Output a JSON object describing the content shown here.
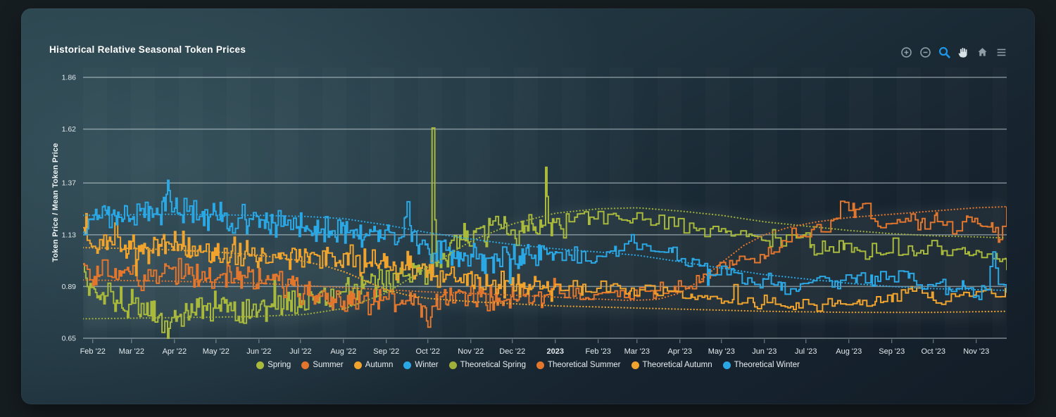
{
  "toolbar": {
    "buttons": [
      {
        "name": "zoom-in"
      },
      {
        "name": "zoom-out"
      },
      {
        "name": "selection-zoom",
        "active": true
      },
      {
        "name": "pan"
      },
      {
        "name": "reset-zoom"
      },
      {
        "name": "menu"
      }
    ],
    "icon_color": "#8f9ea6",
    "active_color": "#1d96e8",
    "pan_color": "#d9e2e7"
  },
  "chart_data": {
    "type": "line",
    "title": "Historical Relative Seasonal Token Prices",
    "xlabel": "",
    "ylabel": "Token Price / Mean Token Price",
    "grid": true,
    "legend_position": "bottom",
    "ylim": [
      0.648,
      1.906
    ],
    "yticks": [
      0.65,
      0.89,
      1.13,
      1.37,
      1.62,
      1.86
    ],
    "domain_days": 667,
    "xticks": [
      {
        "label": "Feb '22",
        "day": 7
      },
      {
        "label": "Mar '22",
        "day": 35
      },
      {
        "label": "Apr '22",
        "day": 66
      },
      {
        "label": "May '22",
        "day": 96
      },
      {
        "label": "Jun '22",
        "day": 127
      },
      {
        "label": "Jul '22",
        "day": 157
      },
      {
        "label": "Aug '22",
        "day": 188
      },
      {
        "label": "Sep '22",
        "day": 219
      },
      {
        "label": "Oct '22",
        "day": 249
      },
      {
        "label": "Nov '22",
        "day": 280
      },
      {
        "label": "Dec '22",
        "day": 310
      },
      {
        "label": "2023",
        "day": 341,
        "bold": true
      },
      {
        "label": "Feb '23",
        "day": 372
      },
      {
        "label": "Mar '23",
        "day": 400
      },
      {
        "label": "Apr '23",
        "day": 431
      },
      {
        "label": "May '23",
        "day": 461
      },
      {
        "label": "Jun '23",
        "day": 492
      },
      {
        "label": "Jul '23",
        "day": 522
      },
      {
        "label": "Aug '23",
        "day": 553
      },
      {
        "label": "Sep '23",
        "day": 584
      },
      {
        "label": "Oct '23",
        "day": 614
      },
      {
        "label": "Nov '23",
        "day": 645
      }
    ],
    "series": [
      {
        "name": "Spring",
        "color": "#a8b93c",
        "style": "solid",
        "points": [
          [
            0,
            1.0
          ],
          [
            4,
            0.86
          ],
          [
            20,
            0.84
          ],
          [
            40,
            0.81
          ],
          [
            59,
            0.72
          ],
          [
            61,
            0.66
          ],
          [
            64,
            0.76
          ],
          [
            78,
            0.78
          ],
          [
            96,
            0.81
          ],
          [
            115,
            0.78
          ],
          [
            135,
            0.8
          ],
          [
            157,
            0.82
          ],
          [
            175,
            0.84
          ],
          [
            195,
            0.87
          ],
          [
            219,
            0.91
          ],
          [
            240,
            0.95
          ],
          [
            250,
            0.96
          ],
          [
            252,
            1.62
          ],
          [
            255,
            0.99
          ],
          [
            268,
            1.09
          ],
          [
            280,
            1.14
          ],
          [
            298,
            1.17
          ],
          [
            310,
            1.16
          ],
          [
            332,
            1.17
          ],
          [
            334,
            1.44
          ],
          [
            336,
            1.18
          ],
          [
            345,
            1.19
          ],
          [
            365,
            1.21
          ],
          [
            385,
            1.22
          ],
          [
            400,
            1.2
          ],
          [
            420,
            1.18
          ],
          [
            445,
            1.16
          ],
          [
            465,
            1.14
          ],
          [
            490,
            1.12
          ],
          [
            520,
            1.12
          ],
          [
            526,
            1.07
          ],
          [
            550,
            1.07
          ],
          [
            580,
            1.04
          ],
          [
            600,
            1.05
          ],
          [
            620,
            1.07
          ],
          [
            640,
            1.05
          ],
          [
            660,
            1.03
          ],
          [
            667,
            0.99
          ]
        ]
      },
      {
        "name": "Summer",
        "color": "#e3762d",
        "style": "solid",
        "points": [
          [
            0,
            0.98
          ],
          [
            8,
            0.93
          ],
          [
            25,
            0.97
          ],
          [
            45,
            0.93
          ],
          [
            65,
            0.96
          ],
          [
            85,
            0.92
          ],
          [
            105,
            0.94
          ],
          [
            127,
            0.92
          ],
          [
            145,
            0.91
          ],
          [
            160,
            0.89
          ],
          [
            180,
            0.82
          ],
          [
            200,
            0.8
          ],
          [
            219,
            0.82
          ],
          [
            240,
            0.83
          ],
          [
            247,
            0.8
          ],
          [
            249,
            0.655
          ],
          [
            252,
            0.8
          ],
          [
            265,
            0.83
          ],
          [
            280,
            0.86
          ],
          [
            298,
            0.84
          ],
          [
            310,
            0.86
          ],
          [
            325,
            0.85
          ],
          [
            341,
            0.87
          ],
          [
            358,
            0.85
          ],
          [
            375,
            0.84
          ],
          [
            395,
            0.85
          ],
          [
            412,
            0.86
          ],
          [
            428,
            0.89
          ],
          [
            445,
            0.93
          ],
          [
            458,
            0.97
          ],
          [
            470,
            1.0
          ],
          [
            482,
            1.03
          ],
          [
            492,
            1.04
          ],
          [
            505,
            1.09
          ],
          [
            515,
            1.13
          ],
          [
            528,
            1.14
          ],
          [
            542,
            1.2
          ],
          [
            550,
            1.29
          ],
          [
            557,
            1.24
          ],
          [
            563,
            1.29
          ],
          [
            572,
            1.19
          ],
          [
            584,
            1.17
          ],
          [
            596,
            1.2
          ],
          [
            606,
            1.17
          ],
          [
            616,
            1.21
          ],
          [
            628,
            1.17
          ],
          [
            638,
            1.2
          ],
          [
            648,
            1.18
          ],
          [
            656,
            1.16
          ],
          [
            662,
            1.12
          ],
          [
            667,
            1.25
          ]
        ]
      },
      {
        "name": "Autumn",
        "color": "#f0a42d",
        "style": "solid",
        "points": [
          [
            0,
            1.13
          ],
          [
            6,
            1.06
          ],
          [
            25,
            1.08
          ],
          [
            45,
            1.05
          ],
          [
            66,
            1.09
          ],
          [
            85,
            1.06
          ],
          [
            105,
            1.04
          ],
          [
            127,
            1.04
          ],
          [
            147,
            1.02
          ],
          [
            167,
            1.01
          ],
          [
            188,
            1.03
          ],
          [
            205,
            1.0
          ],
          [
            219,
            1.0
          ],
          [
            235,
            0.98
          ],
          [
            249,
            0.96
          ],
          [
            265,
            0.93
          ],
          [
            280,
            0.91
          ],
          [
            295,
            0.9
          ],
          [
            310,
            0.89
          ],
          [
            325,
            0.89
          ],
          [
            341,
            0.88
          ],
          [
            360,
            0.88
          ],
          [
            378,
            0.89
          ],
          [
            395,
            0.88
          ],
          [
            410,
            0.87
          ],
          [
            425,
            0.86
          ],
          [
            440,
            0.85
          ],
          [
            455,
            0.84
          ],
          [
            470,
            0.83
          ],
          [
            485,
            0.82
          ],
          [
            500,
            0.81
          ],
          [
            515,
            0.8
          ],
          [
            530,
            0.81
          ],
          [
            545,
            0.8
          ],
          [
            560,
            0.81
          ],
          [
            572,
            0.82
          ],
          [
            584,
            0.85
          ],
          [
            598,
            0.86
          ],
          [
            614,
            0.84
          ],
          [
            630,
            0.85
          ],
          [
            645,
            0.86
          ],
          [
            656,
            0.84
          ],
          [
            667,
            0.88
          ]
        ]
      },
      {
        "name": "Winter",
        "color": "#2aa8e6",
        "style": "solid",
        "points": [
          [
            0,
            1.13
          ],
          [
            4,
            1.2
          ],
          [
            15,
            1.24
          ],
          [
            30,
            1.21
          ],
          [
            45,
            1.24
          ],
          [
            59,
            1.25
          ],
          [
            61,
            1.38
          ],
          [
            64,
            1.24
          ],
          [
            90,
            1.22
          ],
          [
            105,
            1.21
          ],
          [
            120,
            1.19
          ],
          [
            135,
            1.19
          ],
          [
            150,
            1.17
          ],
          [
            165,
            1.17
          ],
          [
            180,
            1.15
          ],
          [
            195,
            1.14
          ],
          [
            210,
            1.13
          ],
          [
            222,
            1.12
          ],
          [
            230,
            1.12
          ],
          [
            234,
            1.29
          ],
          [
            237,
            1.1
          ],
          [
            242,
            1.09
          ],
          [
            249,
            1.06
          ],
          [
            262,
            1.04
          ],
          [
            275,
            1.02
          ],
          [
            290,
            1.01
          ],
          [
            305,
            1.04
          ],
          [
            320,
            1.02
          ],
          [
            341,
            1.05
          ],
          [
            355,
            1.03
          ],
          [
            370,
            1.02
          ],
          [
            385,
            1.07
          ],
          [
            398,
            1.1
          ],
          [
            410,
            1.06
          ],
          [
            425,
            1.04
          ],
          [
            440,
            1.0
          ],
          [
            452,
            0.97
          ],
          [
            465,
            0.95
          ],
          [
            478,
            0.93
          ],
          [
            492,
            0.91
          ],
          [
            505,
            0.89
          ],
          [
            518,
            0.9
          ],
          [
            532,
            0.92
          ],
          [
            545,
            0.91
          ],
          [
            558,
            0.93
          ],
          [
            570,
            0.92
          ],
          [
            584,
            0.95
          ],
          [
            596,
            0.92
          ],
          [
            606,
            0.89
          ],
          [
            616,
            0.9
          ],
          [
            626,
            0.87
          ],
          [
            636,
            0.9
          ],
          [
            645,
            0.86
          ],
          [
            652,
            0.88
          ],
          [
            657,
            1.05
          ],
          [
            661,
            0.9
          ],
          [
            667,
            0.87
          ]
        ]
      },
      {
        "name": "Theoretical Spring",
        "color": "#9fb03a",
        "style": "dotted",
        "points": [
          [
            0,
            0.74
          ],
          [
            60,
            0.745
          ],
          [
            120,
            0.75
          ],
          [
            160,
            0.76
          ],
          [
            190,
            0.79
          ],
          [
            219,
            0.86
          ],
          [
            249,
            0.98
          ],
          [
            280,
            1.1
          ],
          [
            310,
            1.18
          ],
          [
            341,
            1.23
          ],
          [
            372,
            1.25
          ],
          [
            400,
            1.255
          ],
          [
            431,
            1.24
          ],
          [
            461,
            1.22
          ],
          [
            492,
            1.19
          ],
          [
            522,
            1.17
          ],
          [
            553,
            1.15
          ],
          [
            584,
            1.135
          ],
          [
            614,
            1.125
          ],
          [
            645,
            1.12
          ],
          [
            667,
            1.115
          ]
        ]
      },
      {
        "name": "Theoretical Summer",
        "color": "#e3762d",
        "style": "dotted",
        "points": [
          [
            0,
            0.92
          ],
          [
            60,
            0.915
          ],
          [
            127,
            0.905
          ],
          [
            188,
            0.885
          ],
          [
            249,
            0.865
          ],
          [
            310,
            0.85
          ],
          [
            360,
            0.835
          ],
          [
            395,
            0.825
          ],
          [
            415,
            0.83
          ],
          [
            431,
            0.86
          ],
          [
            446,
            0.92
          ],
          [
            461,
            1.0
          ],
          [
            477,
            1.08
          ],
          [
            492,
            1.13
          ],
          [
            510,
            1.165
          ],
          [
            530,
            1.19
          ],
          [
            553,
            1.21
          ],
          [
            584,
            1.225
          ],
          [
            614,
            1.24
          ],
          [
            645,
            1.255
          ],
          [
            667,
            1.26
          ]
        ]
      },
      {
        "name": "Theoretical Autumn",
        "color": "#f0a42d",
        "style": "dotted",
        "points": [
          [
            0,
            1.07
          ],
          [
            45,
            1.065
          ],
          [
            96,
            1.05
          ],
          [
            127,
            1.035
          ],
          [
            157,
            1.01
          ],
          [
            175,
            0.985
          ],
          [
            190,
            0.955
          ],
          [
            204,
            0.915
          ],
          [
            219,
            0.875
          ],
          [
            234,
            0.85
          ],
          [
            249,
            0.835
          ],
          [
            280,
            0.82
          ],
          [
            310,
            0.81
          ],
          [
            341,
            0.8
          ],
          [
            372,
            0.795
          ],
          [
            400,
            0.79
          ],
          [
            431,
            0.785
          ],
          [
            461,
            0.78
          ],
          [
            492,
            0.775
          ],
          [
            553,
            0.77
          ],
          [
            614,
            0.77
          ],
          [
            667,
            0.775
          ]
        ]
      },
      {
        "name": "Theoretical Winter",
        "color": "#2aa8e6",
        "style": "dotted",
        "points": [
          [
            0,
            1.22
          ],
          [
            60,
            1.225
          ],
          [
            127,
            1.22
          ],
          [
            160,
            1.215
          ],
          [
            188,
            1.205
          ],
          [
            219,
            1.175
          ],
          [
            249,
            1.14
          ],
          [
            280,
            1.11
          ],
          [
            310,
            1.085
          ],
          [
            341,
            1.065
          ],
          [
            372,
            1.05
          ],
          [
            400,
            1.035
          ],
          [
            431,
            1.005
          ],
          [
            461,
            0.975
          ],
          [
            492,
            0.945
          ],
          [
            522,
            0.925
          ],
          [
            553,
            0.905
          ],
          [
            584,
            0.89
          ],
          [
            614,
            0.88
          ],
          [
            645,
            0.875
          ],
          [
            667,
            0.872
          ]
        ]
      }
    ]
  }
}
